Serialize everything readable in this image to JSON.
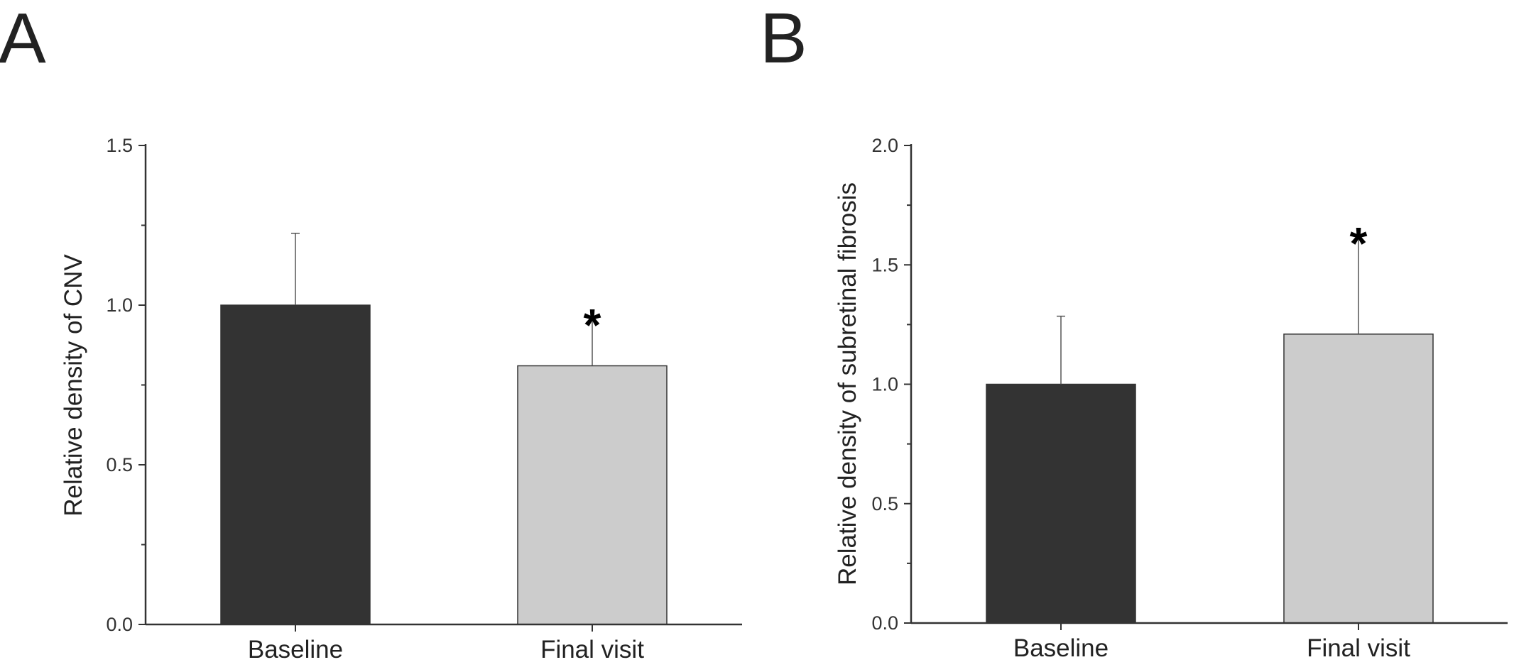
{
  "chart_data": [
    {
      "type": "bar",
      "panel": "A",
      "title": "",
      "xlabel": "",
      "ylabel": "Relative density of CNV",
      "ylim": [
        0,
        1.5
      ],
      "yticks": [
        0.0,
        0.5,
        1.0,
        1.5
      ],
      "yticklabels": [
        "0.0",
        "0.5",
        "1.0",
        "1.5"
      ],
      "categories": [
        "Baseline",
        "Final visit"
      ],
      "values": [
        1.0,
        0.81
      ],
      "error": [
        0.225,
        0.155
      ],
      "colors": [
        "#333333",
        "#cccccc"
      ],
      "annotations": [
        {
          "category": "Final visit",
          "text": "*"
        }
      ]
    },
    {
      "type": "bar",
      "panel": "B",
      "title": "",
      "xlabel": "",
      "ylabel": "Relative density of subretinal fibrosis",
      "ylim": [
        0,
        2.0
      ],
      "yticks": [
        0.0,
        0.5,
        1.0,
        1.5,
        2.0
      ],
      "yticklabels": [
        "0.0",
        "0.5",
        "1.0",
        "1.5",
        "2.0"
      ],
      "categories": [
        "Baseline",
        "Final visit"
      ],
      "values": [
        1.0,
        1.21
      ],
      "error": [
        0.285,
        0.415
      ],
      "colors": [
        "#333333",
        "#cccccc"
      ],
      "annotations": [
        {
          "category": "Final visit",
          "text": "*"
        }
      ]
    }
  ]
}
